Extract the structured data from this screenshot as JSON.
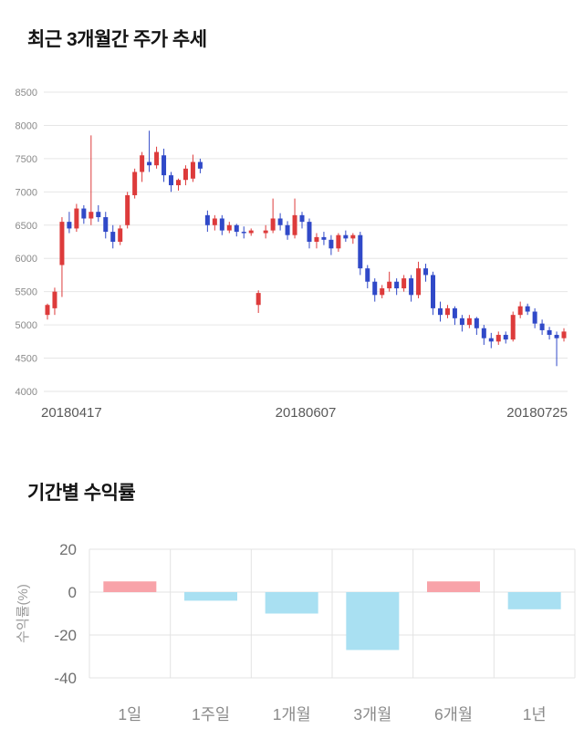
{
  "chart_data": [
    {
      "type": "candlestick",
      "title": "최근 3개월간 주가 추세",
      "ylim": [
        4000,
        8500
      ],
      "yticks": [
        4000,
        4500,
        5000,
        5500,
        6000,
        6500,
        7000,
        7500,
        8000,
        8500
      ],
      "xticks": [
        "20180417",
        "20180607",
        "20180725"
      ],
      "grid": true,
      "up_color": "#dd3b3b",
      "down_color": "#3049c8",
      "grid_color": "#e6e6e6",
      "ytick_color": "#8a8a8a",
      "xtick_color": "#595959",
      "candles": [
        [
          5150,
          5320,
          5080,
          5300
        ],
        [
          5250,
          5560,
          5150,
          5500
        ],
        [
          5900,
          6620,
          5420,
          6550
        ],
        [
          6550,
          6700,
          6380,
          6450
        ],
        [
          6450,
          6820,
          6400,
          6750
        ],
        [
          6750,
          6800,
          6520,
          6600
        ],
        [
          6600,
          7850,
          6500,
          6700
        ],
        [
          6700,
          6800,
          6550,
          6620
        ],
        [
          6620,
          6700,
          6300,
          6400
        ],
        [
          6400,
          6500,
          6150,
          6250
        ],
        [
          6250,
          6500,
          6200,
          6450
        ],
        [
          6500,
          7000,
          6450,
          6950
        ],
        [
          6950,
          7350,
          6900,
          7300
        ],
        [
          7300,
          7600,
          7150,
          7550
        ],
        [
          7450,
          7920,
          7300,
          7400
        ],
        [
          7400,
          7680,
          7350,
          7600
        ],
        [
          7550,
          7650,
          7150,
          7250
        ],
        [
          7250,
          7300,
          7000,
          7100
        ],
        [
          7100,
          7200,
          7020,
          7180
        ],
        [
          7180,
          7400,
          7100,
          7350
        ],
        [
          7200,
          7560,
          7150,
          7450
        ],
        [
          7450,
          7500,
          7280,
          7350
        ],
        [
          6650,
          6720,
          6400,
          6500
        ],
        [
          6500,
          6650,
          6420,
          6600
        ],
        [
          6600,
          6650,
          6350,
          6420
        ],
        [
          6420,
          6550,
          6380,
          6500
        ],
        [
          6500,
          6520,
          6330,
          6400
        ],
        [
          6400,
          6480,
          6300,
          6380
        ],
        [
          6380,
          6450,
          6340,
          6420
        ],
        [
          5300,
          5520,
          5180,
          5480
        ],
        [
          6380,
          6500,
          6300,
          6420
        ],
        [
          6420,
          6900,
          6380,
          6600
        ],
        [
          6600,
          6680,
          6420,
          6500
        ],
        [
          6500,
          6560,
          6280,
          6350
        ],
        [
          6350,
          6900,
          6300,
          6650
        ],
        [
          6650,
          6700,
          6450,
          6550
        ],
        [
          6550,
          6600,
          6150,
          6250
        ],
        [
          6250,
          6380,
          6150,
          6320
        ],
        [
          6320,
          6400,
          6200,
          6280
        ],
        [
          6280,
          6350,
          6050,
          6150
        ],
        [
          6150,
          6380,
          6100,
          6350
        ],
        [
          6350,
          6420,
          6250,
          6300
        ],
        [
          6300,
          6380,
          6220,
          6350
        ],
        [
          6350,
          6400,
          5750,
          5850
        ],
        [
          5850,
          5900,
          5550,
          5650
        ],
        [
          5650,
          5700,
          5350,
          5450
        ],
        [
          5450,
          5600,
          5400,
          5550
        ],
        [
          5550,
          5800,
          5500,
          5650
        ],
        [
          5650,
          5700,
          5450,
          5550
        ],
        [
          5550,
          5750,
          5500,
          5700
        ],
        [
          5700,
          5750,
          5350,
          5450
        ],
        [
          5450,
          5950,
          5400,
          5850
        ],
        [
          5850,
          5920,
          5650,
          5750
        ],
        [
          5750,
          5800,
          5150,
          5250
        ],
        [
          5250,
          5350,
          5050,
          5150
        ],
        [
          5150,
          5300,
          5100,
          5250
        ],
        [
          5250,
          5280,
          5000,
          5100
        ],
        [
          5100,
          5150,
          4900,
          5000
        ],
        [
          5000,
          5150,
          4950,
          5100
        ],
        [
          5100,
          5120,
          4850,
          4950
        ],
        [
          4950,
          5000,
          4700,
          4800
        ],
        [
          4800,
          4880,
          4650,
          4750
        ],
        [
          4750,
          4900,
          4700,
          4850
        ],
        [
          4850,
          4900,
          4720,
          4780
        ],
        [
          4780,
          5200,
          4750,
          5150
        ],
        [
          5150,
          5350,
          5100,
          5280
        ],
        [
          5280,
          5320,
          5150,
          5200
        ],
        [
          5200,
          5250,
          4950,
          5020
        ],
        [
          5020,
          5080,
          4850,
          4920
        ],
        [
          4920,
          4970,
          4780,
          4850
        ],
        [
          4850,
          4900,
          4380,
          4800
        ],
        [
          4800,
          4950,
          4750,
          4900
        ]
      ]
    },
    {
      "type": "bar",
      "title": "기간별 수익률",
      "ylabel": "수익률(%)",
      "categories": [
        "1일",
        "1주일",
        "1개월",
        "3개월",
        "6개월",
        "1년"
      ],
      "values": [
        5,
        -4,
        -10,
        -27,
        5,
        -8
      ],
      "ylim": [
        -40,
        20
      ],
      "yticks": [
        20,
        0,
        -20,
        -40
      ],
      "grid": true,
      "positive_color": "#f8a3a9",
      "negative_color": "#a9e0f2",
      "grid_color": "#e3e3e3",
      "ytick_color": "#6f6f6f",
      "xtick_color": "#8a8a8a",
      "ylabel_color": "#9a9a9a"
    }
  ]
}
